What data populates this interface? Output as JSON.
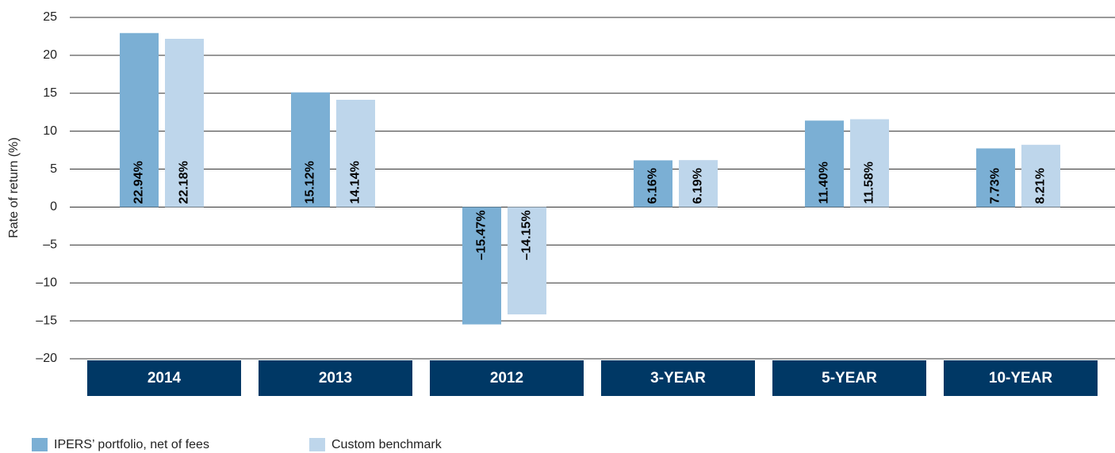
{
  "chart_data": {
    "type": "bar",
    "y_label": "Rate of return (%)",
    "categories": [
      "2014",
      "2013",
      "2012",
      "3-YEAR",
      "5-YEAR",
      "10-YEAR"
    ],
    "series": [
      {
        "name": "IPERS’ portfolio, net of fees",
        "color": "#7bafd4",
        "values": [
          22.94,
          15.12,
          -15.47,
          6.16,
          11.4,
          7.73
        ],
        "value_labels": [
          "22.94%",
          "15.12%",
          "–15.47%",
          "6.16%",
          "11.40%",
          "7.73%"
        ]
      },
      {
        "name": "Custom benchmark",
        "color": "#bed6eb",
        "values": [
          22.18,
          14.14,
          -14.15,
          6.19,
          11.58,
          8.21
        ],
        "value_labels": [
          "22.18%",
          "14.14%",
          "–14.15%",
          "6.19%",
          "11.58%",
          "8.21%"
        ]
      }
    ],
    "category_color": "#003865",
    "ylim": [
      -20,
      25
    ],
    "yticks": [
      {
        "value": -20,
        "label": "–20"
      },
      {
        "value": -15,
        "label": "–15"
      },
      {
        "value": -10,
        "label": "–10"
      },
      {
        "value": -5,
        "label": "–5"
      },
      0,
      5,
      10,
      15,
      20,
      25
    ],
    "grid": true
  }
}
